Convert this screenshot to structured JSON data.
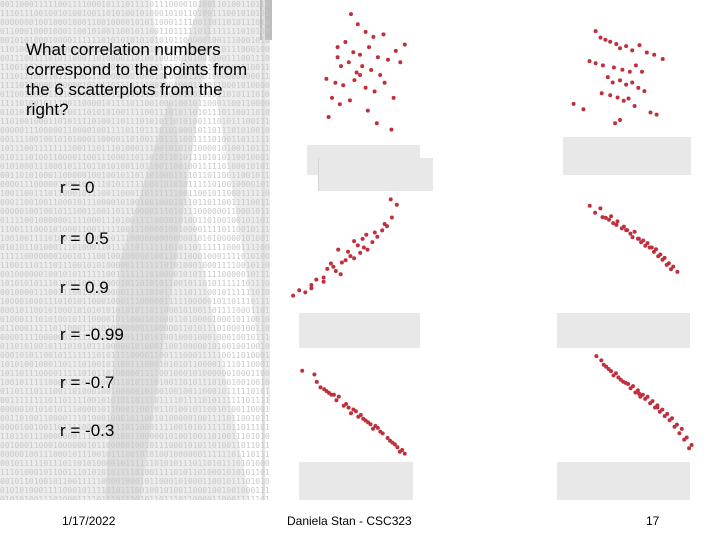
{
  "slide": {
    "question": "What correlation numbers correspond to the points from the 6 scatterplots from the right?",
    "options": [
      "r = 0",
      "r = 0.5",
      "r = 0.9",
      "r = -0.99",
      "r = -0.7",
      "r = -0.3"
    ],
    "footer": {
      "date": "1/17/2022",
      "author": "Daniela Stan -  CSC323",
      "page": "17"
    }
  },
  "colors": {
    "point": "#c0303c",
    "mask": "#e8e8e8",
    "texture": "#c9c9c9"
  },
  "chart_data": [
    {
      "type": "scatter",
      "x": [
        0.42,
        0.48,
        0.55,
        0.62,
        0.71,
        0.9,
        0.3,
        0.37,
        0.44,
        0.5,
        0.58,
        0.66,
        0.75,
        0.82,
        0.33,
        0.4,
        0.47,
        0.52,
        0.6,
        0.68,
        0.2,
        0.28,
        0.35,
        0.45,
        0.55,
        0.63,
        0.72,
        0.8,
        0.25,
        0.32,
        0.41,
        0.57,
        0.65,
        0.78,
        0.3,
        0.5,
        0.86,
        0.22
      ],
      "y": [
        0.96,
        0.88,
        0.82,
        0.78,
        0.8,
        0.72,
        0.7,
        0.74,
        0.66,
        0.64,
        0.7,
        0.62,
        0.6,
        0.67,
        0.55,
        0.58,
        0.5,
        0.55,
        0.52,
        0.48,
        0.45,
        0.42,
        0.4,
        0.44,
        0.38,
        0.35,
        0.42,
        0.3,
        0.3,
        0.25,
        0.28,
        0.2,
        0.1,
        0.05,
        0.62,
        0.48,
        0.58,
        0.15
      ]
    },
    {
      "type": "scatter",
      "x": [
        0.3,
        0.34,
        0.38,
        0.42,
        0.47,
        0.5,
        0.55,
        0.6,
        0.66,
        0.72,
        0.78,
        0.85,
        0.25,
        0.3,
        0.36,
        0.45,
        0.52,
        0.58,
        0.63,
        0.68,
        0.4,
        0.44,
        0.5,
        0.55,
        0.6,
        0.65,
        0.7,
        0.35,
        0.42,
        0.48,
        0.53,
        0.57,
        0.12,
        0.2,
        0.62,
        0.75,
        0.8,
        0.5,
        0.46
      ],
      "y": [
        0.98,
        0.92,
        0.9,
        0.88,
        0.86,
        0.82,
        0.84,
        0.8,
        0.85,
        0.78,
        0.76,
        0.72,
        0.7,
        0.68,
        0.66,
        0.64,
        0.62,
        0.6,
        0.66,
        0.6,
        0.55,
        0.5,
        0.52,
        0.48,
        0.5,
        0.45,
        0.42,
        0.4,
        0.38,
        0.36,
        0.33,
        0.35,
        0.3,
        0.25,
        0.28,
        0.22,
        0.2,
        0.15,
        0.12
      ]
    },
    {
      "type": "scatter",
      "x": [
        0.05,
        0.1,
        0.15,
        0.2,
        0.24,
        0.3,
        0.33,
        0.36,
        0.4,
        0.44,
        0.48,
        0.52,
        0.55,
        0.6,
        0.63,
        0.66,
        0.7,
        0.74,
        0.78,
        0.82,
        0.86,
        0.9,
        0.2,
        0.3,
        0.38,
        0.45,
        0.5,
        0.58,
        0.62,
        0.72,
        0.8,
        0.85,
        0.42,
        0.55,
        0.65
      ],
      "y": [
        0.05,
        0.1,
        0.08,
        0.15,
        0.2,
        0.18,
        0.3,
        0.35,
        0.28,
        0.25,
        0.38,
        0.42,
        0.4,
        0.45,
        0.5,
        0.48,
        0.55,
        0.6,
        0.66,
        0.7,
        0.78,
        0.9,
        0.12,
        0.22,
        0.32,
        0.36,
        0.46,
        0.52,
        0.58,
        0.64,
        0.72,
        0.95,
        0.48,
        0.56,
        0.62
      ]
    },
    {
      "type": "scatter",
      "x": [
        0.1,
        0.15,
        0.22,
        0.28,
        0.32,
        0.36,
        0.4,
        0.44,
        0.48,
        0.52,
        0.56,
        0.6,
        0.64,
        0.68,
        0.72,
        0.76,
        0.8,
        0.84,
        0.88,
        0.92,
        0.2,
        0.3,
        0.42,
        0.5,
        0.58,
        0.66,
        0.74,
        0.82,
        0.25,
        0.35,
        0.45,
        0.55,
        0.62,
        0.7,
        0.78,
        0.86
      ],
      "y": [
        0.98,
        0.9,
        0.85,
        0.82,
        0.78,
        0.8,
        0.72,
        0.7,
        0.66,
        0.68,
        0.6,
        0.58,
        0.55,
        0.5,
        0.48,
        0.42,
        0.38,
        0.32,
        0.28,
        0.22,
        0.95,
        0.86,
        0.74,
        0.62,
        0.56,
        0.5,
        0.4,
        0.3,
        0.84,
        0.76,
        0.7,
        0.6,
        0.52,
        0.45,
        0.36,
        0.25
      ]
    },
    {
      "type": "scatter",
      "x": [
        0.2,
        0.26,
        0.3,
        0.34,
        0.38,
        0.42,
        0.46,
        0.5,
        0.54,
        0.58,
        0.62,
        0.66,
        0.7,
        0.74,
        0.78,
        0.82,
        0.86,
        0.9,
        0.94,
        0.98,
        0.24,
        0.28,
        0.36,
        0.4,
        0.44,
        0.48,
        0.52,
        0.56,
        0.6,
        0.64,
        0.68,
        0.72,
        0.76,
        0.8,
        0.84,
        0.88,
        0.92,
        0.96,
        0.32,
        0.55,
        0.7
      ],
      "y": [
        0.98,
        0.9,
        0.86,
        0.8,
        0.78,
        0.74,
        0.72,
        0.7,
        0.66,
        0.62,
        0.6,
        0.56,
        0.52,
        0.48,
        0.44,
        0.4,
        0.34,
        0.3,
        0.22,
        0.15,
        0.94,
        0.88,
        0.82,
        0.76,
        0.73,
        0.68,
        0.64,
        0.6,
        0.58,
        0.54,
        0.5,
        0.46,
        0.42,
        0.38,
        0.32,
        0.26,
        0.2,
        0.12,
        0.84,
        0.63,
        0.5
      ]
    },
    {
      "type": "scatter",
      "x": [
        0.1,
        0.2,
        0.28,
        0.34,
        0.4,
        0.46,
        0.52,
        0.58,
        0.64,
        0.7,
        0.76,
        0.82,
        0.88,
        0.94,
        0.22,
        0.3,
        0.38,
        0.44,
        0.5,
        0.56,
        0.62,
        0.68,
        0.74,
        0.8,
        0.86,
        0.92,
        0.25,
        0.36,
        0.48,
        0.6,
        0.72,
        0.84,
        0.32,
        0.54,
        0.66,
        0.9
      ],
      "y": [
        0.98,
        0.94,
        0.78,
        0.72,
        0.7,
        0.62,
        0.56,
        0.5,
        0.42,
        0.38,
        0.3,
        0.22,
        0.15,
        0.08,
        0.86,
        0.76,
        0.66,
        0.6,
        0.52,
        0.48,
        0.44,
        0.35,
        0.32,
        0.25,
        0.18,
        0.12,
        0.8,
        0.72,
        0.58,
        0.46,
        0.36,
        0.2,
        0.74,
        0.54,
        0.4,
        0.1
      ]
    }
  ]
}
